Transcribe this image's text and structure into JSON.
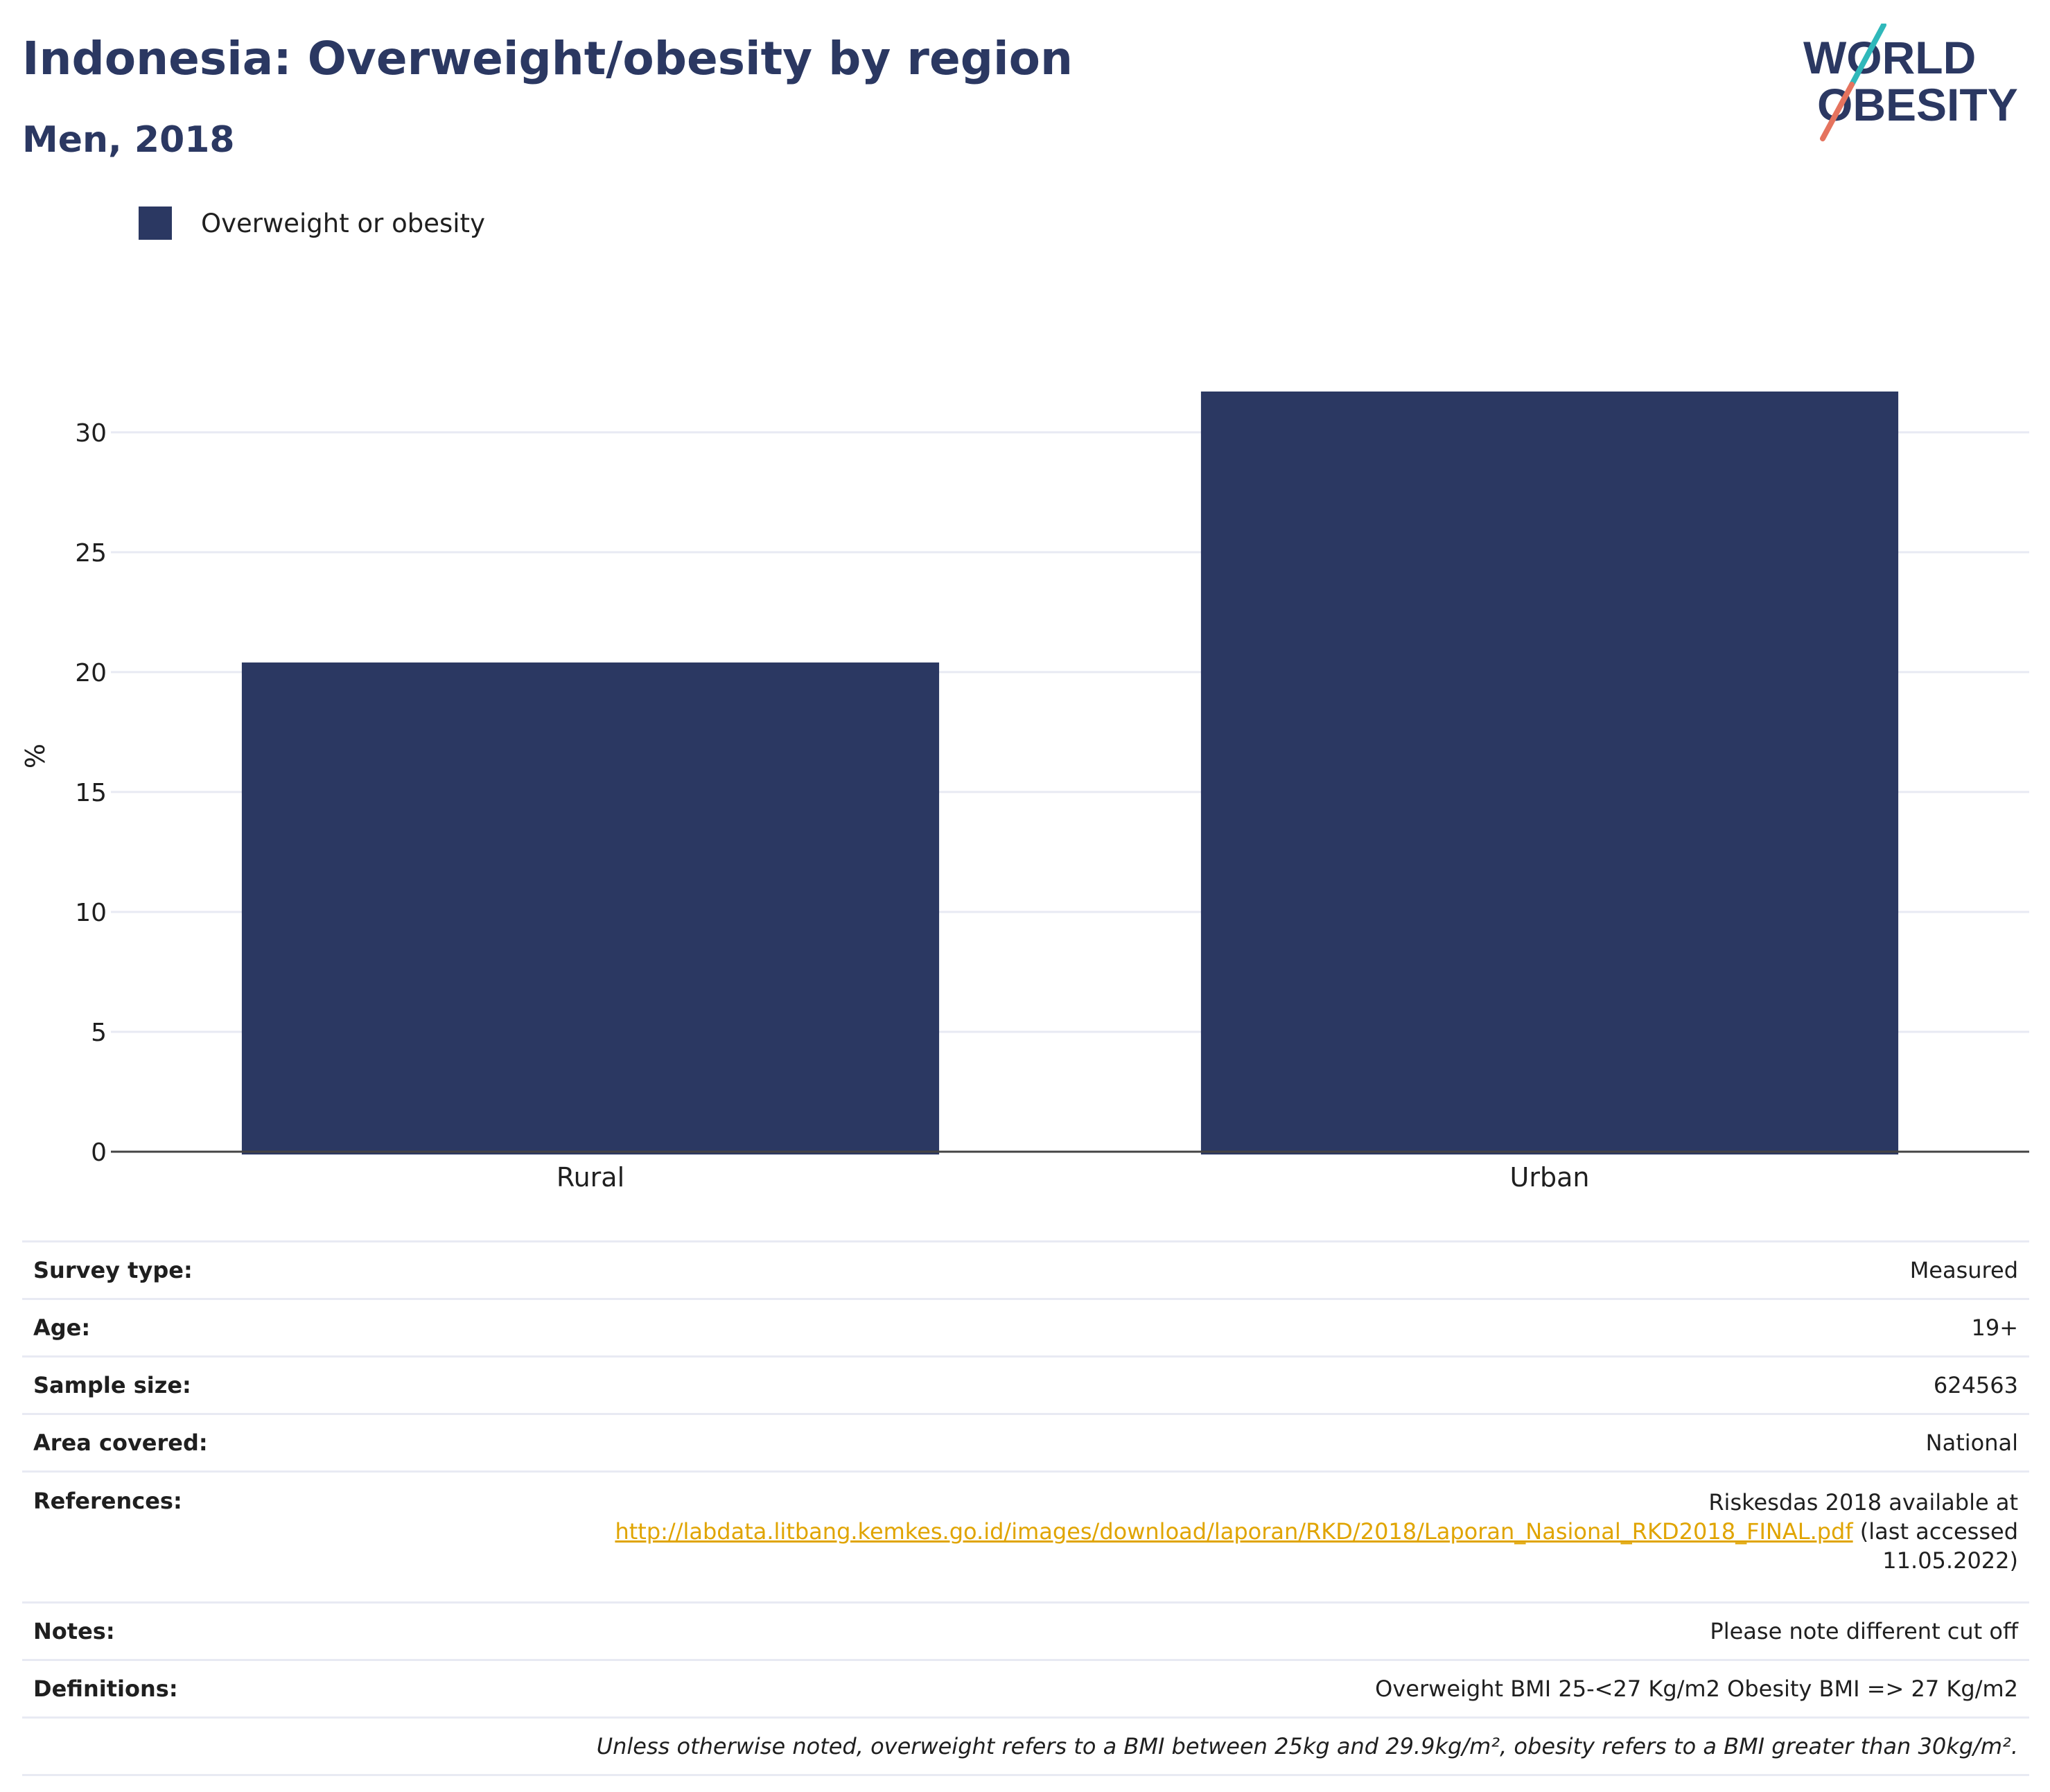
{
  "header": {
    "title": "Indonesia: Overweight/obesity by region",
    "subtitle": "Men, 2018"
  },
  "logo": {
    "line1": "WORLD",
    "line2": "OBESITY",
    "colors": {
      "text": "#2b3862",
      "teal": "#2fb8ba",
      "coral": "#e5735e"
    }
  },
  "legend": {
    "label": "Overweight or obesity",
    "color": "#2b3862"
  },
  "chart_data": {
    "type": "bar",
    "categories": [
      "Rural",
      "Urban"
    ],
    "series": [
      {
        "name": "Overweight or obesity",
        "values": [
          20.4,
          31.7
        ],
        "color": "#2b3862"
      }
    ],
    "ylabel": "%",
    "ylim": [
      0,
      33
    ],
    "yticks": [
      0,
      5,
      10,
      15,
      20,
      25,
      30
    ],
    "grid": true,
    "legend_position": "top-left"
  },
  "info": {
    "survey_type": {
      "label": "Survey type:",
      "value": "Measured"
    },
    "age": {
      "label": "Age:",
      "value": "19+"
    },
    "sample_size": {
      "label": "Sample size:",
      "value": "624563"
    },
    "area_covered": {
      "label": "Area covered:",
      "value": "National"
    },
    "references": {
      "label": "References:",
      "line1": "Riskesdas 2018 available at",
      "link": "http://labdata.litbang.kemkes.go.id/images/download/laporan/RKD/2018/Laporan_Nasional_RKD2018_FINAL.pdf",
      "suffix": " (last accessed",
      "line3": "11.05.2022)"
    },
    "notes": {
      "label": "Notes:",
      "value": "Please note different cut off"
    },
    "definitions": {
      "label": "Definitions:",
      "value": "Overweight BMI 25-<27 Kg/m2 Obesity BMI => 27 Kg/m2"
    },
    "footnote": "Unless otherwise noted, overweight refers to a BMI between 25kg and 29.9kg/m², obesity refers to a BMI greater than 30kg/m²."
  }
}
